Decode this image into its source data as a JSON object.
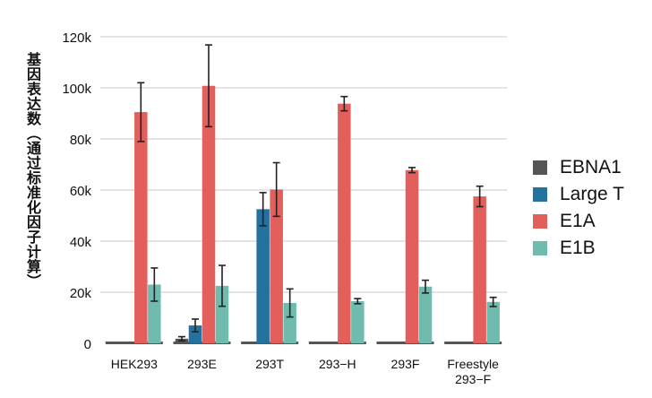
{
  "chart_data": {
    "type": "bar",
    "title": "",
    "xlabel": "",
    "ylabel": "基因表达数（通过标准化因子计算）",
    "ylim": [
      0,
      120000
    ],
    "yticks": [
      0,
      20000,
      40000,
      60000,
      80000,
      100000,
      120000
    ],
    "ytick_labels": [
      "0",
      "20k",
      "40k",
      "60k",
      "80k",
      "100k",
      "120k"
    ],
    "grid": true,
    "legend_position": "right",
    "categories": [
      "HEK293",
      "293E",
      "293T",
      "293−H",
      "293F",
      "Freestyle\n293−F"
    ],
    "series": [
      {
        "name": "EBNA1",
        "color": "#555555",
        "values": [
          0,
          1800,
          0,
          0,
          0,
          0
        ],
        "errors": [
          0,
          800,
          0,
          0,
          0,
          0
        ]
      },
      {
        "name": "Large T",
        "color": "#23719e",
        "values": [
          0,
          7000,
          52500,
          0,
          0,
          0
        ],
        "errors": [
          0,
          2500,
          6500,
          0,
          0,
          0
        ]
      },
      {
        "name": "E1A",
        "color": "#e35f5c",
        "values": [
          90500,
          100800,
          60200,
          93800,
          67800,
          57500
        ],
        "errors": [
          11500,
          16000,
          10500,
          2800,
          1000,
          4000
        ]
      },
      {
        "name": "E1B",
        "color": "#6fbcae",
        "values": [
          23000,
          22500,
          15800,
          16500,
          22200,
          16200
        ],
        "errors": [
          6500,
          8000,
          5500,
          1000,
          2500,
          1800
        ]
      }
    ]
  }
}
